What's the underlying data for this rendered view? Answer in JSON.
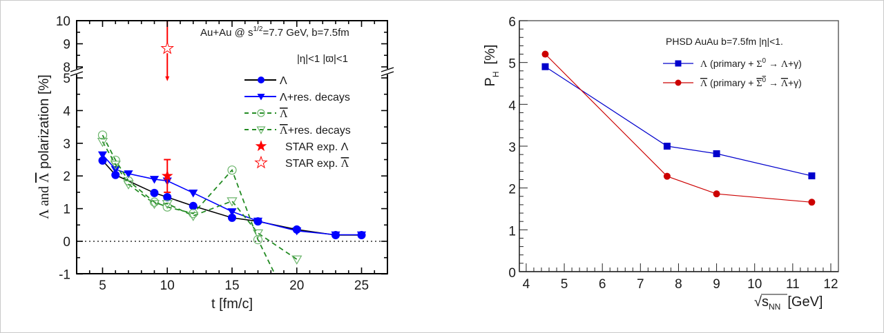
{
  "chart_data": [
    {
      "type": "line",
      "title": "",
      "xlabel": "t [fm/c]",
      "ylabel": "Λ and Λ̄ polarization [%]",
      "ylabel_parts": {
        "lambda": "Λ and ",
        "lambdabar": "Λ",
        "rest": " polarization [%]"
      },
      "xlim": [
        3,
        27
      ],
      "ylim": [
        -1,
        10
      ],
      "y_break": [
        5,
        8
      ],
      "x_ticks": [
        5,
        10,
        15,
        20,
        25
      ],
      "x_tick_labels": [
        "5",
        "10",
        "15",
        "20",
        "25"
      ],
      "y_ticks_lower": [
        -1,
        0,
        1,
        2,
        3,
        4,
        5
      ],
      "y_ticks_upper": [
        8,
        9,
        10
      ],
      "y_tick_labels_lower": [
        "-1",
        "0",
        "1",
        "2",
        "3",
        "4",
        "5"
      ],
      "y_tick_labels_upper": [
        "8",
        "9",
        "10"
      ],
      "annotations": {
        "line1_pre": "Au+Au @ s",
        "line1_sup": "1/2",
        "line1_post": "=7.7 GeV, b=7.5fm",
        "line2": "|η|<1  |ϖ|<1"
      },
      "zero_line": true,
      "legend_position": "top-right",
      "series": [
        {
          "name": "Λ",
          "legend_label": "Λ",
          "color": "#000000",
          "marker_color": "#0000ff",
          "marker": "filled-circle",
          "dash": "solid",
          "x": [
            5,
            6,
            9,
            10,
            12,
            15,
            17,
            20,
            23,
            25
          ],
          "y": [
            2.47,
            2.03,
            1.48,
            1.35,
            1.08,
            0.72,
            0.61,
            0.36,
            0.19,
            0.19
          ]
        },
        {
          "name": "Λ+res. decays",
          "legend_label": "Λ+res. decays",
          "color": "#0000ff",
          "marker_color": "#0000ff",
          "marker": "filled-triangle-down",
          "dash": "solid",
          "x": [
            5,
            6,
            7,
            9,
            10,
            12,
            15,
            17,
            20,
            23,
            25
          ],
          "y": [
            2.65,
            2.2,
            2.07,
            1.9,
            1.85,
            1.48,
            0.91,
            0.62,
            0.32,
            0.2,
            0.2
          ]
        },
        {
          "name": "Λ̄",
          "legend_label": "Λ",
          "legend_bar": true,
          "color": "#228b22",
          "marker_color": "#6ab46a",
          "marker": "open-circle",
          "dash": "dashed",
          "x": [
            5,
            6,
            7,
            9,
            10,
            12,
            15,
            17,
            18.3
          ],
          "y": [
            3.25,
            2.48,
            1.85,
            1.2,
            1.05,
            0.85,
            2.18,
            0.05,
            -1.0
          ]
        },
        {
          "name": "Λ̄+res. decays",
          "legend_label": "Λ+res. decays",
          "legend_bar": true,
          "color": "#228b22",
          "marker_color": "#6ab46a",
          "marker": "open-triangle-down",
          "dash": "dashed",
          "x": [
            5,
            6,
            7,
            9,
            10,
            12,
            15,
            17,
            20
          ],
          "y": [
            3.05,
            2.35,
            1.75,
            1.15,
            1.15,
            0.78,
            1.23,
            0.25,
            -0.55
          ]
        },
        {
          "name": "STAR exp. Λ",
          "legend_label": "STAR exp. Λ",
          "color": "#ff0000",
          "marker": "filled-star",
          "x": [
            10
          ],
          "y": [
            2.0
          ],
          "err_low": [
            0.5
          ],
          "err_high": [
            0.5
          ]
        },
        {
          "name": "STAR exp. Λ̄",
          "legend_label": "STAR exp. Λ",
          "legend_bar": true,
          "color": "#ff0000",
          "marker": "open-star",
          "x": [
            10
          ],
          "y": [
            8.8
          ],
          "upper_limit": true,
          "arrow_to": 4.9
        }
      ]
    },
    {
      "type": "line",
      "title": "",
      "xlabel": "√s_NN [GeV]",
      "xlabel_parts": {
        "sqrt": "√",
        "s": "s",
        "sub": "NN",
        "unit": "[GeV]"
      },
      "ylabel": "P_H [%]",
      "ylabel_parts": {
        "p": "P",
        "sub": "H",
        "unit": "[%]"
      },
      "xlim": [
        3.82,
        12.2
      ],
      "ylim": [
        0,
        6
      ],
      "x_ticks": [
        4,
        5,
        6,
        7,
        8,
        9,
        10,
        11,
        12
      ],
      "x_tick_labels": [
        "4",
        "5",
        "6",
        "7",
        "8",
        "9",
        "10",
        "11",
        "12"
      ],
      "y_ticks": [
        0,
        1,
        2,
        3,
        4,
        5,
        6
      ],
      "y_tick_labels": [
        "0",
        "1",
        "2",
        "3",
        "4",
        "5",
        "6"
      ],
      "legend_header": "PHSD  AuAu  b=7.5fm   |η|<1.",
      "legend_position": "top-right",
      "series": [
        {
          "name": "Λ (primary + Σ0 → Λ+γ)",
          "legend_parts": [
            "Λ (primary + Σ",
            "0",
            " → Λ+γ)"
          ],
          "color": "#0000cc",
          "marker": "filled-square",
          "x": [
            4.5,
            7.7,
            9.0,
            11.5
          ],
          "y": [
            4.9,
            3.0,
            2.82,
            2.29
          ]
        },
        {
          "name": "Λ̄ (primary + Σ̄0 → Λ̄+γ)",
          "legend_parts": [
            "Λ (primary + Σ",
            "0",
            " → Λ+γ)"
          ],
          "legend_bar": true,
          "color": "#cc0000",
          "marker": "filled-circle",
          "x": [
            4.5,
            7.7,
            9.0,
            11.5
          ],
          "y": [
            5.2,
            2.28,
            1.86,
            1.66
          ]
        }
      ]
    }
  ]
}
